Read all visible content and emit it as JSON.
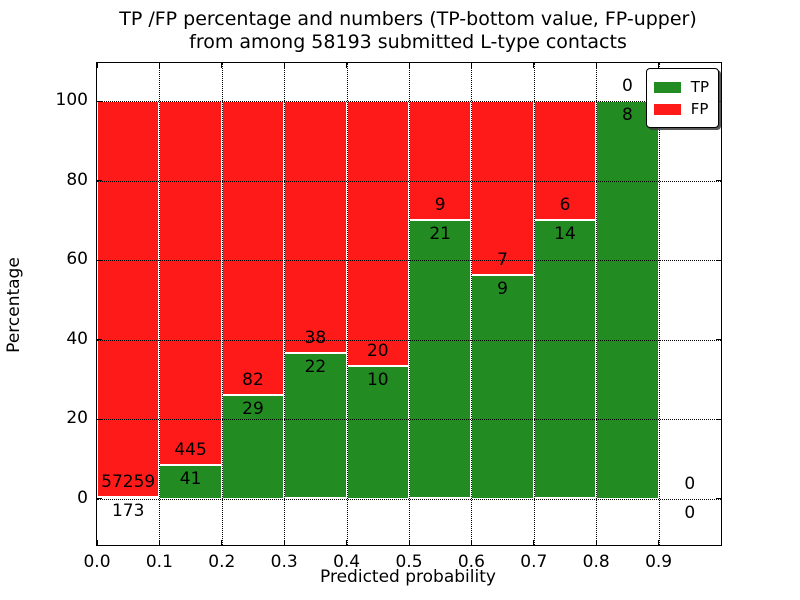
{
  "title": {
    "line1": "TP /FP percentage and numbers (TP-bottom value, FP-upper)",
    "line2": "from among 58193 submitted L-type contacts"
  },
  "chart_data": {
    "type": "bar",
    "stacked": true,
    "normalized_to_percent": true,
    "title": "TP /FP percentage and numbers (TP-bottom value, FP-upper) from among 58193 submitted L-type contacts",
    "xlabel": "Predicted probability",
    "ylabel": "Percentage",
    "x_tick_labels": [
      "0.0",
      "0.1",
      "0.2",
      "0.3",
      "0.4",
      "0.5",
      "0.6",
      "0.7",
      "0.8",
      "0.9"
    ],
    "y_tick_labels": [
      "0",
      "20",
      "40",
      "60",
      "80",
      "100"
    ],
    "xlim": [
      0.0,
      1.0
    ],
    "ylim": [
      -11.7,
      109.6
    ],
    "grid": "dotted",
    "total_submitted": 58193,
    "colors": {
      "tp": "#228b22",
      "fp": "#ff1a1a"
    },
    "legend": {
      "position": "upper right",
      "entries": [
        {
          "label": "TP",
          "color": "#228b22"
        },
        {
          "label": "FP",
          "color": "#ff1a1a"
        }
      ]
    },
    "bins": [
      {
        "range": [
          0.0,
          0.1
        ],
        "tp": 173,
        "fp": 57259
      },
      {
        "range": [
          0.1,
          0.2
        ],
        "tp": 41,
        "fp": 445
      },
      {
        "range": [
          0.2,
          0.3
        ],
        "tp": 29,
        "fp": 82
      },
      {
        "range": [
          0.3,
          0.4
        ],
        "tp": 22,
        "fp": 38
      },
      {
        "range": [
          0.4,
          0.5
        ],
        "tp": 10,
        "fp": 20
      },
      {
        "range": [
          0.5,
          0.6
        ],
        "tp": 21,
        "fp": 9
      },
      {
        "range": [
          0.6,
          0.7
        ],
        "tp": 9,
        "fp": 7
      },
      {
        "range": [
          0.7,
          0.8
        ],
        "tp": 14,
        "fp": 6
      },
      {
        "range": [
          0.8,
          0.9
        ],
        "tp": 8,
        "fp": 0
      },
      {
        "range": [
          0.9,
          1.0
        ],
        "tp": 0,
        "fp": 0
      }
    ]
  }
}
